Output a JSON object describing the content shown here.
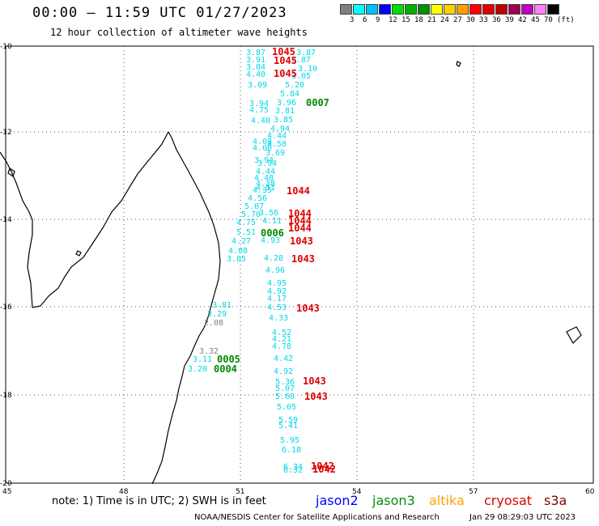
{
  "header": {
    "title": "00:00 – 11:59 UTC 01/27/2023",
    "subtitle": "12 hour collection of altimeter wave heights"
  },
  "legend": {
    "colors": [
      "#808080",
      "#00ffff",
      "#00bfff",
      "#0000ff",
      "#00e000",
      "#00b000",
      "#009000",
      "#ffff00",
      "#ffd000",
      "#ffa000",
      "#ff0000",
      "#e00000",
      "#c00000",
      "#a00050",
      "#c000c0",
      "#ff80ff",
      "#000000"
    ],
    "tick_labels": [
      "3",
      "6",
      "9",
      "12",
      "15",
      "18",
      "21",
      "24",
      "27",
      "30",
      "33",
      "36",
      "39",
      "42",
      "45",
      "70",
      "(ft)"
    ]
  },
  "axes": {
    "lat_labels": [
      "-10",
      "-12",
      "-14",
      "-16",
      "-18",
      "-20"
    ],
    "lon_labels": [
      "45",
      "48",
      "51",
      "54",
      "57",
      "60"
    ]
  },
  "tracks": {
    "cyan": [
      "3.87",
      "3.91",
      "3.04",
      "4.40",
      "3.09",
      "3.94",
      "4.75",
      "4.40",
      "4.08",
      "4.00",
      "3.94",
      "4.44",
      "4.48",
      "4.38",
      "4.35",
      "4.51",
      "4.56",
      "5.07",
      "5.70",
      "4.75",
      "5.51",
      "4.27",
      "4.08",
      "3.85",
      "3.81",
      "3.29",
      "3.11",
      "3.20",
      "3.87",
      "3.87",
      "3.10",
      "3.05",
      "5.20",
      "5.84",
      "3.96",
      "3.81",
      "3.85",
      "4.94",
      "4.44",
      "4.58",
      "3.69",
      "3.94",
      "3.56",
      "4.11",
      "4.93",
      "4.28",
      "4.96",
      "4.95",
      "4.92",
      "4.17",
      "4.53",
      "4.33",
      "4.52",
      "4.21",
      "4.78",
      "4.42",
      "4.92",
      "5.36",
      "5.07",
      "5.60",
      "5.05",
      "5.59",
      "5.41",
      "5.95",
      "6.18",
      "6.34",
      "6.32"
    ],
    "gray": [
      "2.08",
      "3.32"
    ],
    "red": [
      "1045",
      "1045",
      "1045",
      "1044",
      "1044",
      "1044",
      "1044",
      "1043",
      "1043",
      "1043",
      "1043",
      "1043",
      "1042",
      "1042"
    ],
    "green": [
      "0007",
      "0006",
      "0005",
      "0004"
    ]
  },
  "footer": {
    "note": "note: 1) Time is in UTC; 2) SWH is in feet",
    "satellites": [
      {
        "name": "jason2",
        "color": "#0000ff"
      },
      {
        "name": "jason3",
        "color": "#009000"
      },
      {
        "name": "altika",
        "color": "#ffa000"
      },
      {
        "name": "cryosat",
        "color": "#e00000"
      },
      {
        "name": "s3a",
        "color": "#800000"
      }
    ],
    "credit": "NOAA/NESDIS Center for Satellite Applications and Research",
    "timestamp": "Jan 29 08:29:03 UTC 2023"
  }
}
